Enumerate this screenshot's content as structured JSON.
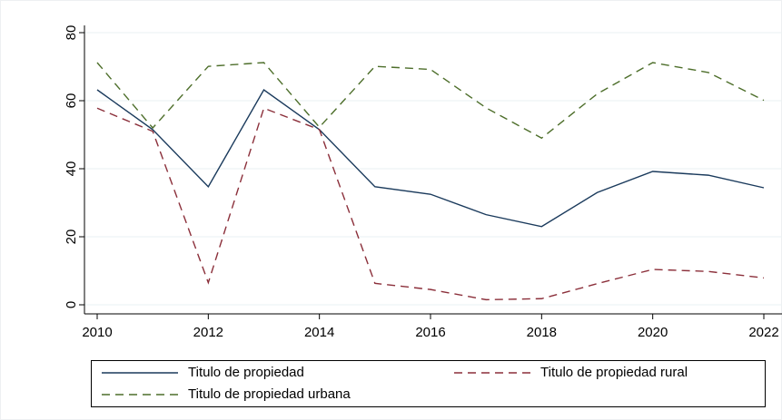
{
  "chart_data": {
    "type": "line",
    "x": [
      2010,
      2011,
      2012,
      2013,
      2014,
      2015,
      2016,
      2017,
      2018,
      2019,
      2020,
      2021,
      2022
    ],
    "series": [
      {
        "name": "Titulo de propiedad",
        "color": "#1a3a5c",
        "dash": "solid",
        "values": [
          63.2,
          51.5,
          34.7,
          63.2,
          51.5,
          34.7,
          32.5,
          26.5,
          23.0,
          33.0,
          39.2,
          38.1,
          34.4
        ]
      },
      {
        "name": "Titulo de propiedad rural",
        "color": "#8b2f3a",
        "dash": "dashed",
        "values": [
          57.8,
          51.0,
          6.5,
          57.8,
          51.5,
          6.3,
          4.5,
          1.5,
          1.8,
          6.2,
          10.4,
          9.8,
          7.9
        ]
      },
      {
        "name": "Titulo de propiedad urbana",
        "color": "#4d6e2a",
        "dash": "dashed",
        "values": [
          71.2,
          52.0,
          70.1,
          71.2,
          52.2,
          70.1,
          69.2,
          57.9,
          49.0,
          62.0,
          71.2,
          68.3,
          60.1
        ]
      }
    ],
    "xlim": [
      2010,
      2022
    ],
    "xticks": [
      2010,
      2012,
      2014,
      2016,
      2018,
      2020,
      2022
    ],
    "ylim": [
      0,
      80
    ],
    "yticks": [
      0,
      20,
      40,
      60,
      80
    ],
    "grid": true,
    "legend": "bottom"
  }
}
